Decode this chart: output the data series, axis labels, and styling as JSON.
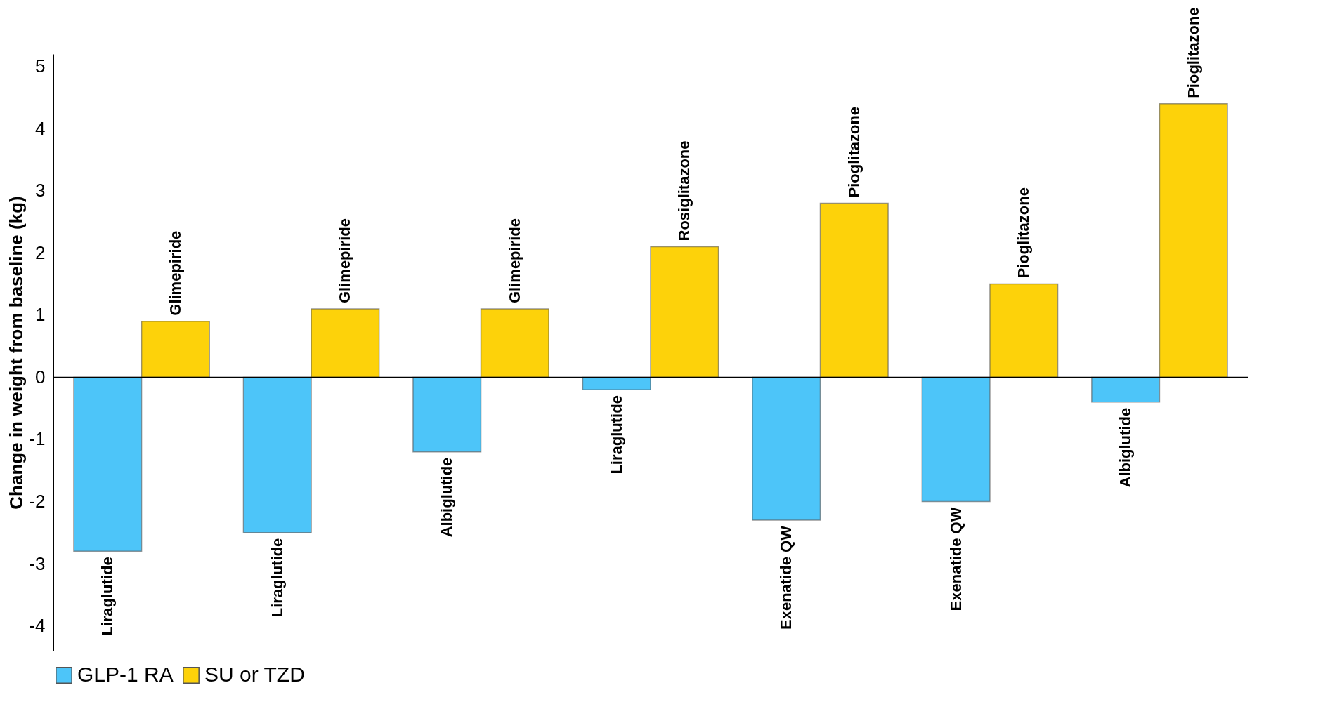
{
  "chart_data": {
    "type": "bar",
    "ylabel": "Change in weight from baseline (kg)",
    "categories": [
      null,
      null,
      null,
      null,
      null,
      null,
      null
    ],
    "series": [
      {
        "name": "GLP-1 RA",
        "color": "#4dc5f9",
        "values": [
          -2.8,
          -2.5,
          -1.2,
          -0.2,
          -2.3,
          -2.0,
          -0.4
        ],
        "value_labels": [
          "Liraglutide",
          "Liraglutide",
          "Albiglutide",
          "Liraglutide",
          "Exenatide QW",
          "Exenatide QW",
          "Albiglutide"
        ]
      },
      {
        "name": "SU or TZD",
        "color": "#fdd20a",
        "values": [
          0.9,
          1.1,
          1.1,
          2.1,
          2.8,
          1.5,
          4.4
        ],
        "value_labels": [
          "Glimepiride",
          "Glimepiride",
          "Glimepiride",
          "Rosiglitazone",
          "Pioglitazone",
          "Pioglitazone",
          "Pioglitazone"
        ]
      }
    ],
    "ylim": [
      -4.4,
      5.2
    ],
    "yticks": [
      -4,
      -3,
      -2,
      -1,
      0,
      1,
      2,
      3,
      4,
      5
    ],
    "grid": false,
    "ref_lines": [
      {
        "axis": "y",
        "value": 0
      }
    ],
    "legend": "bottom"
  }
}
